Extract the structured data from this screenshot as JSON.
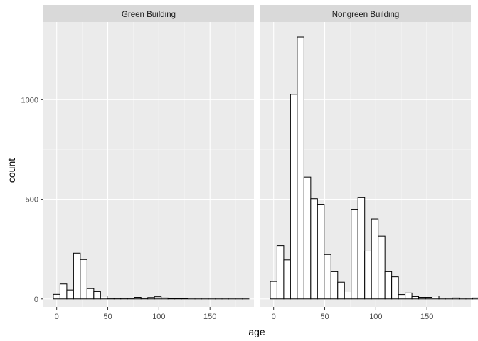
{
  "chart_data": {
    "type": "bar",
    "subtype": "faceted-histogram",
    "xlabel": "age",
    "ylabel": "count",
    "xlim": [
      -13,
      193
    ],
    "ylim": [
      -40,
      1390
    ],
    "x_ticks": [
      0,
      50,
      100,
      150
    ],
    "y_ticks": [
      0,
      500,
      1000
    ],
    "grid": true,
    "bin_width": 6.6,
    "bin_start": -3.3,
    "colors": {
      "panel_bg": "#ebebeb",
      "grid_major": "#ffffff",
      "grid_minor": "#f5f5f5",
      "strip_bg": "#d9d9d9",
      "bar_fill": "#ffffff",
      "bar_stroke": "#000000"
    },
    "facets": [
      {
        "label": "Green Building",
        "values": [
          23,
          75,
          45,
          230,
          198,
          52,
          37,
          15,
          4,
          4,
          4,
          4,
          8,
          4,
          7,
          11,
          5,
          1,
          3,
          1,
          0,
          0,
          0,
          0,
          0,
          0,
          0,
          0,
          0
        ]
      },
      {
        "label": "Nongreen Building",
        "values": [
          88,
          268,
          196,
          1027,
          1315,
          612,
          503,
          475,
          223,
          137,
          84,
          40,
          450,
          508,
          240,
          402,
          316,
          137,
          111,
          22,
          30,
          12,
          8,
          8,
          15,
          0,
          0,
          5,
          0,
          0,
          5
        ]
      }
    ]
  }
}
